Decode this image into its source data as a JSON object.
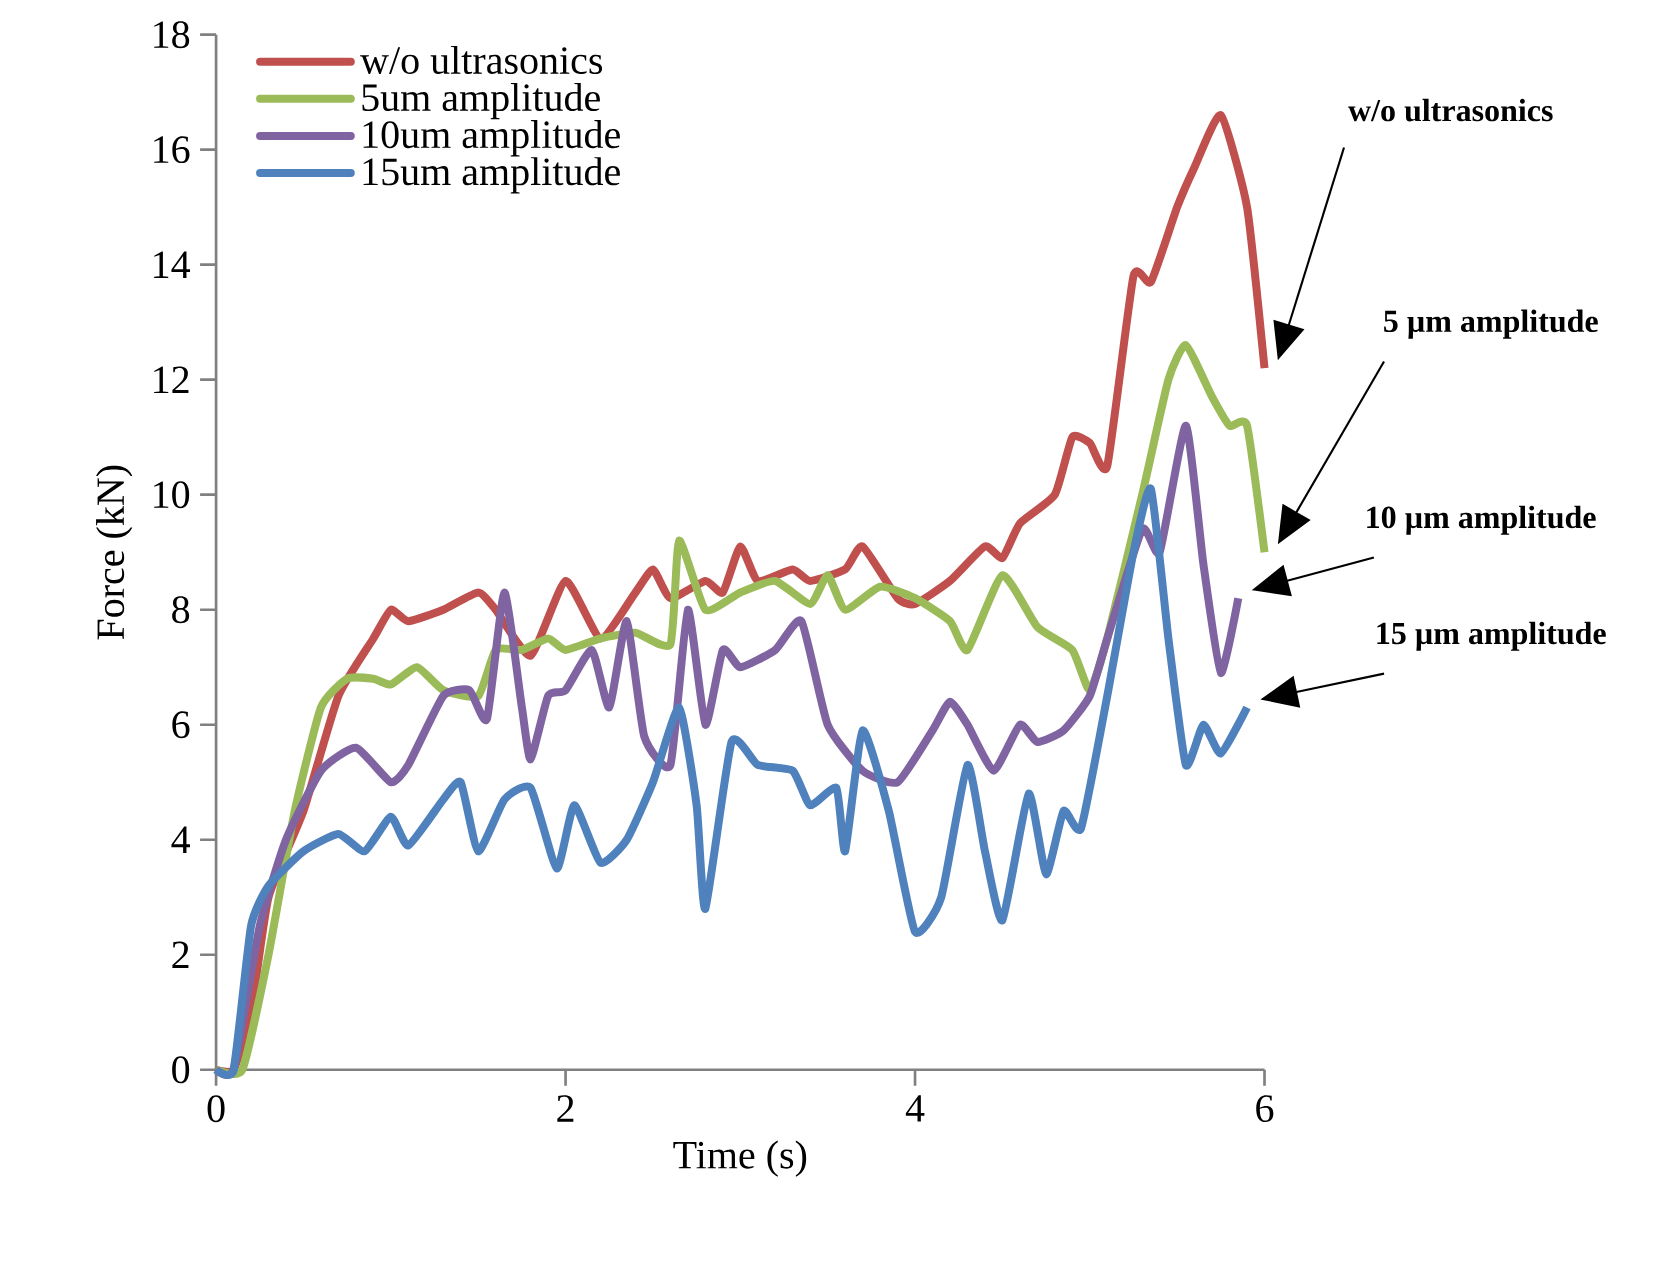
{
  "chart_data": {
    "type": "line",
    "xlabel": "Time (s)",
    "ylabel": "Force (kN)",
    "xlim": [
      0,
      6
    ],
    "ylim": [
      0,
      18
    ],
    "xticks": [
      0,
      2,
      4,
      6
    ],
    "yticks": [
      0,
      2,
      4,
      6,
      8,
      10,
      12,
      14,
      16,
      18
    ],
    "legend": "top left",
    "series": [
      {
        "name": "w/o ultrasonics",
        "color": "#c0504d",
        "x": [
          0,
          0.1,
          0.2,
          0.3,
          0.5,
          0.7,
          0.9,
          1.0,
          1.1,
          1.3,
          1.5,
          1.6,
          1.8,
          2.0,
          2.2,
          2.4,
          2.5,
          2.6,
          2.8,
          2.9,
          3.0,
          3.1,
          3.3,
          3.4,
          3.6,
          3.7,
          3.9,
          4.0,
          4.2,
          4.4,
          4.5,
          4.6,
          4.8,
          4.9,
          5.0,
          5.1,
          5.25,
          5.35,
          5.5,
          5.6,
          5.75,
          5.9,
          6.0
        ],
        "values": [
          0,
          0,
          1,
          3,
          4.5,
          6.5,
          7.5,
          8,
          7.8,
          8,
          8.3,
          8,
          7.2,
          8.5,
          7.5,
          8.3,
          8.7,
          8.2,
          8.5,
          8.3,
          9.1,
          8.5,
          8.7,
          8.5,
          8.7,
          9.1,
          8.2,
          8.1,
          8.5,
          9.1,
          8.9,
          9.5,
          10,
          11,
          10.9,
          10.5,
          13.8,
          13.7,
          15,
          15.7,
          16.6,
          15,
          12.2
        ]
      },
      {
        "name": "5um amplitude",
        "color": "#9bbb59",
        "x": [
          0,
          0.15,
          0.3,
          0.45,
          0.6,
          0.75,
          0.9,
          1.0,
          1.15,
          1.3,
          1.5,
          1.6,
          1.75,
          1.9,
          2.0,
          2.2,
          2.4,
          2.6,
          2.65,
          2.8,
          3.0,
          3.2,
          3.4,
          3.5,
          3.6,
          3.8,
          4.0,
          4.2,
          4.3,
          4.5,
          4.7,
          4.9,
          5.0,
          5.1,
          5.3,
          5.45,
          5.55,
          5.7,
          5.8,
          5.9,
          6.0
        ],
        "values": [
          0,
          0,
          2,
          4.5,
          6.3,
          6.8,
          6.8,
          6.7,
          7.0,
          6.6,
          6.5,
          7.3,
          7.3,
          7.5,
          7.3,
          7.5,
          7.6,
          7.4,
          9.2,
          8.0,
          8.3,
          8.5,
          8.1,
          8.6,
          8.0,
          8.4,
          8.2,
          7.8,
          7.3,
          8.6,
          7.7,
          7.3,
          6.6,
          7.5,
          10.0,
          12.0,
          12.6,
          11.7,
          11.2,
          11.2,
          9.0
        ]
      },
      {
        "name": "10um amplitude",
        "color": "#8064a2",
        "x": [
          0,
          0.1,
          0.25,
          0.4,
          0.6,
          0.8,
          1.0,
          1.1,
          1.3,
          1.45,
          1.55,
          1.65,
          1.75,
          1.8,
          1.9,
          2.0,
          2.15,
          2.25,
          2.35,
          2.45,
          2.6,
          2.7,
          2.8,
          2.9,
          3.0,
          3.2,
          3.35,
          3.5,
          3.7,
          3.9,
          4.1,
          4.2,
          4.3,
          4.45,
          4.6,
          4.7,
          4.85,
          5.0,
          5.1,
          5.3,
          5.4,
          5.55,
          5.65,
          5.75,
          5.85
        ],
        "values": [
          0,
          0,
          2.5,
          4,
          5.2,
          5.6,
          5.0,
          5.3,
          6.5,
          6.6,
          6.1,
          8.3,
          6.3,
          5.4,
          6.5,
          6.6,
          7.3,
          6.3,
          7.8,
          5.8,
          5.3,
          8.0,
          6.0,
          7.3,
          7.0,
          7.3,
          7.8,
          6.0,
          5.2,
          5.0,
          5.9,
          6.4,
          6.0,
          5.2,
          6.0,
          5.7,
          5.9,
          6.5,
          7.5,
          9.4,
          9.0,
          11.2,
          8.8,
          6.9,
          8.2
        ]
      },
      {
        "name": "15um amplitude",
        "color": "#4f81bd",
        "x": [
          0,
          0.1,
          0.2,
          0.3,
          0.5,
          0.7,
          0.85,
          1.0,
          1.1,
          1.3,
          1.4,
          1.5,
          1.65,
          1.8,
          1.95,
          2.05,
          2.2,
          2.35,
          2.5,
          2.65,
          2.75,
          2.8,
          2.95,
          3.1,
          3.3,
          3.4,
          3.55,
          3.6,
          3.7,
          3.85,
          4.0,
          4.15,
          4.3,
          4.4,
          4.5,
          4.65,
          4.75,
          4.85,
          4.95,
          5.1,
          5.25,
          5.35,
          5.45,
          5.55,
          5.65,
          5.75,
          5.9
        ],
        "values": [
          0,
          0,
          2.5,
          3.2,
          3.8,
          4.1,
          3.8,
          4.4,
          3.9,
          4.7,
          5.0,
          3.8,
          4.7,
          4.9,
          3.5,
          4.6,
          3.6,
          4.0,
          5.0,
          6.3,
          4.6,
          2.8,
          5.7,
          5.3,
          5.2,
          4.6,
          4.9,
          3.8,
          5.9,
          4.5,
          2.4,
          3.0,
          5.3,
          3.8,
          2.6,
          4.8,
          3.4,
          4.5,
          4.2,
          6.5,
          9.0,
          10.1,
          7.5,
          5.3,
          6.0,
          5.5,
          6.3
        ]
      }
    ],
    "annotations": [
      "w/o ultrasonics",
      "5 µm amplitude",
      "10 µm amplitude",
      "15 µm amplitude"
    ]
  }
}
